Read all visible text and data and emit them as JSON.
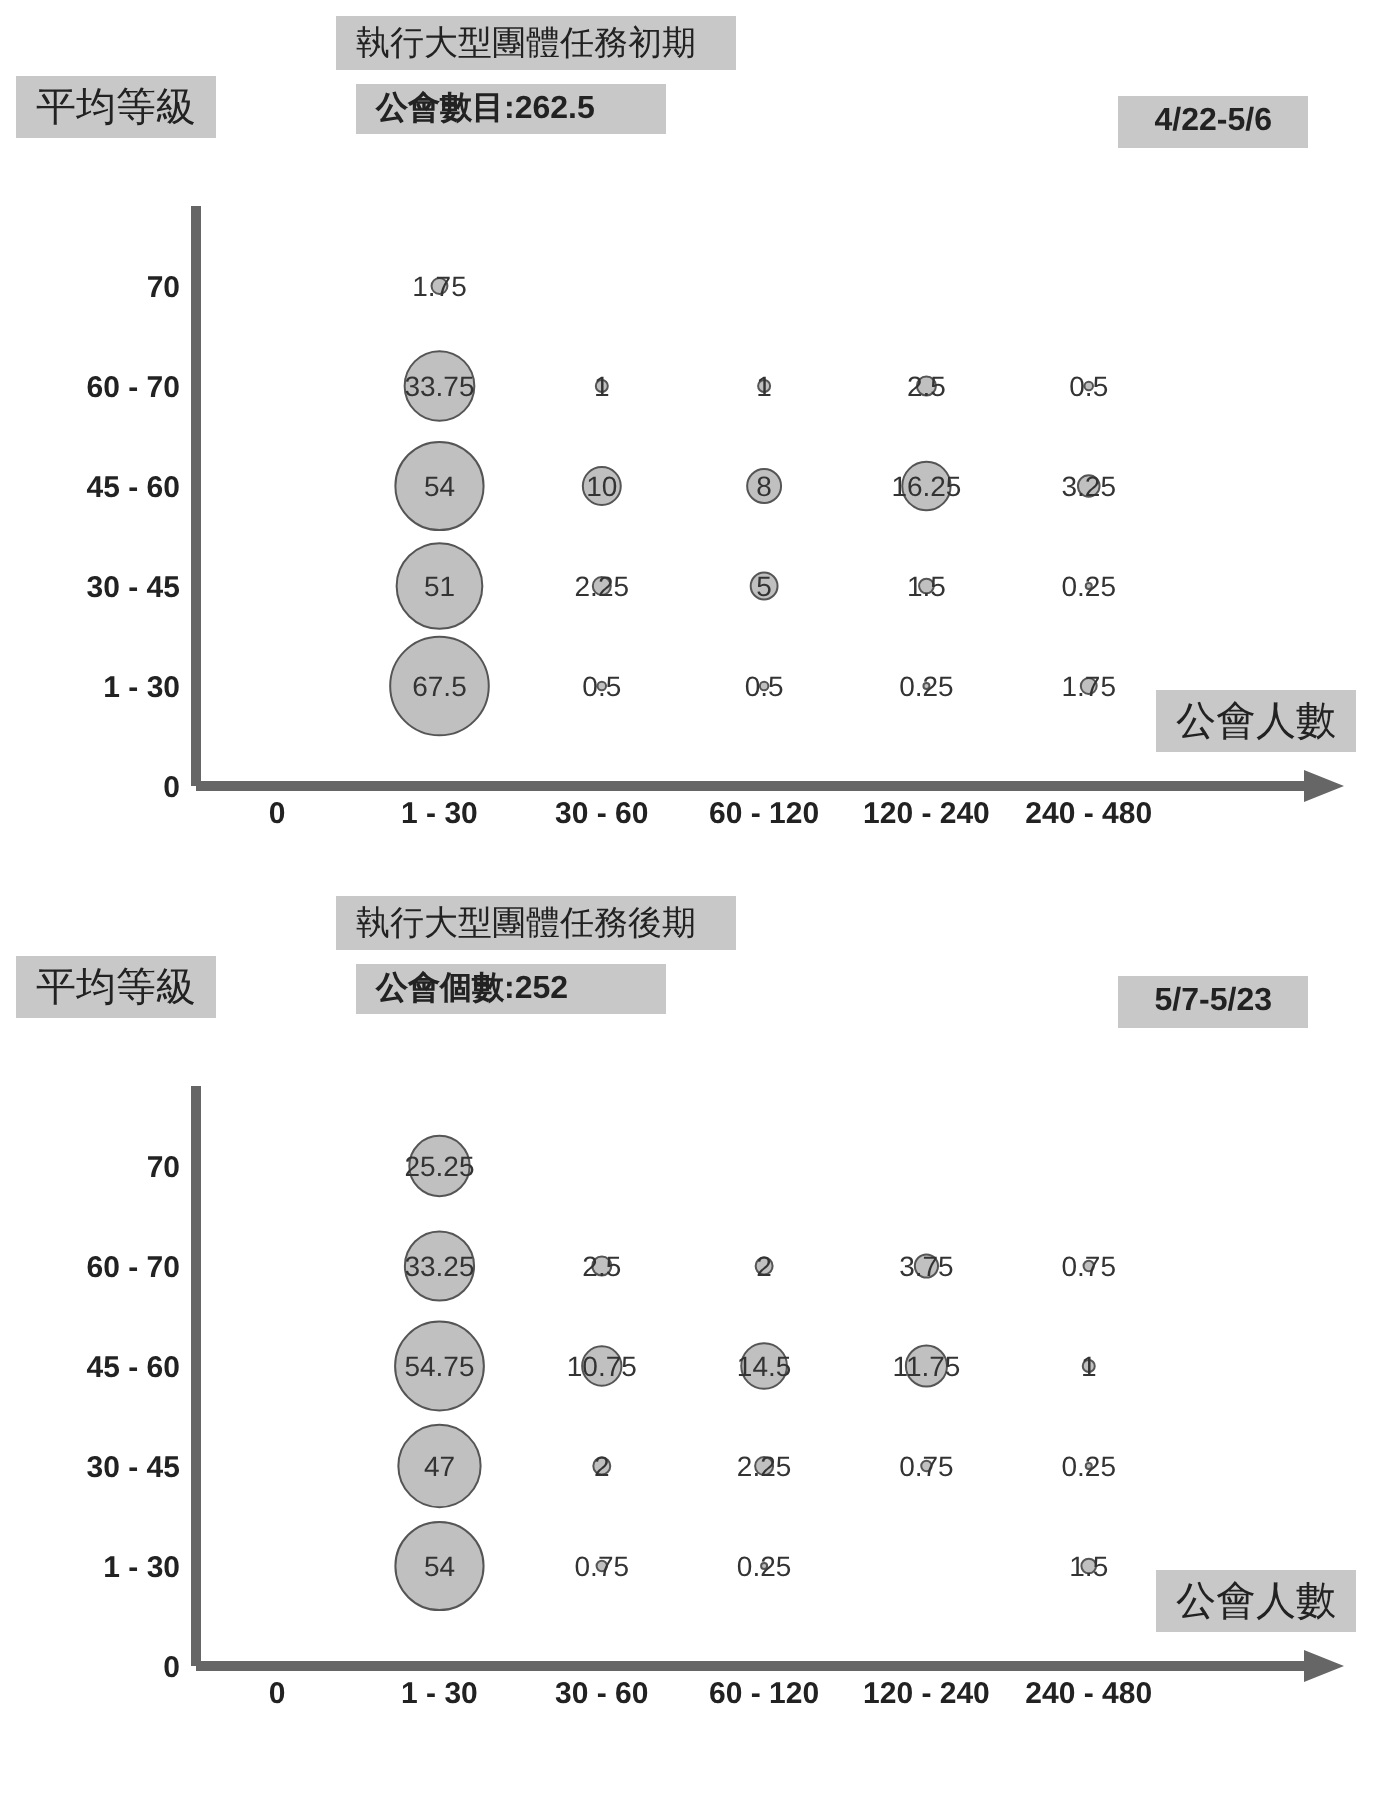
{
  "chart_data": [
    {
      "type": "heatmap",
      "title": "執行大型團體任務初期",
      "subtitle": "公會數目:262.5",
      "annotations": [
        "4/22-5/6"
      ],
      "xlabel": "公會人數",
      "ylabel": "平均等級",
      "color": "#c0c0c0",
      "data_labels": true,
      "categories": [
        "0",
        "1 - 30",
        "30 - 60",
        "60 - 120",
        "120 - 240",
        "240 - 480"
      ],
      "y_categories": [
        "70",
        "60 - 70",
        "45 - 60",
        "30 - 45",
        "1 - 30",
        "0"
      ],
      "cells": [
        [
          null,
          1.75,
          null,
          null,
          null,
          null
        ],
        [
          null,
          33.75,
          1,
          1,
          2.5,
          0.5
        ],
        [
          null,
          54,
          10,
          8,
          16.25,
          3.25
        ],
        [
          null,
          51,
          2.25,
          5,
          1.5,
          0.25
        ],
        [
          null,
          67.5,
          0.5,
          0.5,
          0.25,
          1.75
        ],
        [
          null,
          null,
          null,
          null,
          null,
          null
        ]
      ]
    },
    {
      "type": "heatmap",
      "title": "執行大型團體任務後期",
      "subtitle": "公會個數:252",
      "annotations": [
        "5/7-5/23"
      ],
      "xlabel": "公會人數",
      "ylabel": "平均等級",
      "color": "#c0c0c0",
      "data_labels": true,
      "categories": [
        "0",
        "1 - 30",
        "30 - 60",
        "60 - 120",
        "120 - 240",
        "240 - 480"
      ],
      "y_categories": [
        "70",
        "60 - 70",
        "45 - 60",
        "30 - 45",
        "1 - 30",
        "0"
      ],
      "cells": [
        [
          null,
          25.25,
          null,
          null,
          null,
          null
        ],
        [
          null,
          33.25,
          2.5,
          2,
          3.75,
          0.75
        ],
        [
          null,
          54.75,
          10.75,
          14.5,
          11.75,
          1
        ],
        [
          null,
          47,
          2,
          2.25,
          0.75,
          0.25
        ],
        [
          null,
          54,
          0.75,
          0.25,
          null,
          1.5
        ],
        [
          null,
          null,
          null,
          null,
          null,
          null
        ]
      ]
    }
  ]
}
